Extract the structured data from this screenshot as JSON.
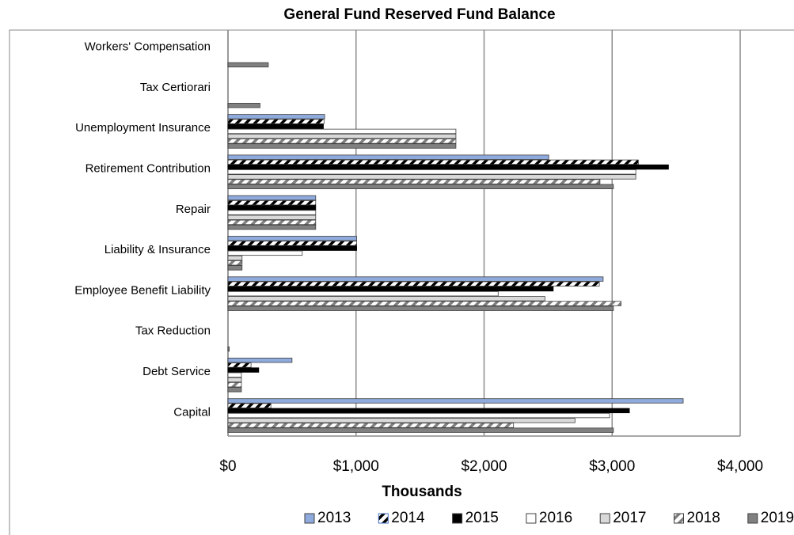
{
  "chart_data": {
    "type": "hbar",
    "title": "General Fund Reserved Fund Balance",
    "xlabel": "Thousands",
    "categories": [
      "Workers' Compensation",
      "Tax Certiorari",
      "Unemployment Insurance",
      "Retirement Contribution",
      "Repair",
      "Liability & Insurance",
      "Employee Benefit Liability",
      "Tax Reduction",
      "Debt Service",
      "Capital"
    ],
    "series": [
      {
        "name": "2013",
        "color": "#8faadc",
        "hatch": false,
        "values": [
          0,
          0,
          755,
          2505,
          685,
          1005,
          2930,
          0,
          500,
          3555
        ]
      },
      {
        "name": "2014",
        "color": "#4472c4",
        "hatch": true,
        "values": [
          0,
          0,
          750,
          3205,
          685,
          1005,
          2900,
          0,
          180,
          335
        ]
      },
      {
        "name": "2015",
        "color": "#000000",
        "hatch": false,
        "values": [
          0,
          0,
          745,
          3440,
          685,
          1005,
          2540,
          0,
          240,
          3135
        ]
      },
      {
        "name": "2016",
        "color": "#ffffff",
        "hatch": false,
        "values": [
          0,
          0,
          1780,
          3185,
          685,
          580,
          2110,
          0,
          105,
          2980
        ]
      },
      {
        "name": "2017",
        "color": "#d9d9d9",
        "hatch": false,
        "values": [
          0,
          0,
          1780,
          3185,
          685,
          110,
          2475,
          0,
          105,
          2710
        ]
      },
      {
        "name": "2018",
        "color": "#7f7f7f",
        "hatch": true,
        "values": [
          0,
          0,
          1780,
          2905,
          685,
          110,
          3070,
          0,
          105,
          2230
        ]
      },
      {
        "name": "2019",
        "color": "#808080",
        "hatch": false,
        "values": [
          315,
          250,
          1780,
          3010,
          685,
          110,
          3010,
          10,
          105,
          3010
        ]
      }
    ],
    "xlim": [
      0,
      4000
    ],
    "xticks": [
      {
        "value": 0,
        "label": "$0"
      },
      {
        "value": 1000,
        "label": "$1,000"
      },
      {
        "value": 2000,
        "label": "$2,000"
      },
      {
        "value": 3000,
        "label": "$3,000"
      },
      {
        "value": 4000,
        "label": "$4,000"
      }
    ],
    "grid": true,
    "legend": "bottom"
  }
}
